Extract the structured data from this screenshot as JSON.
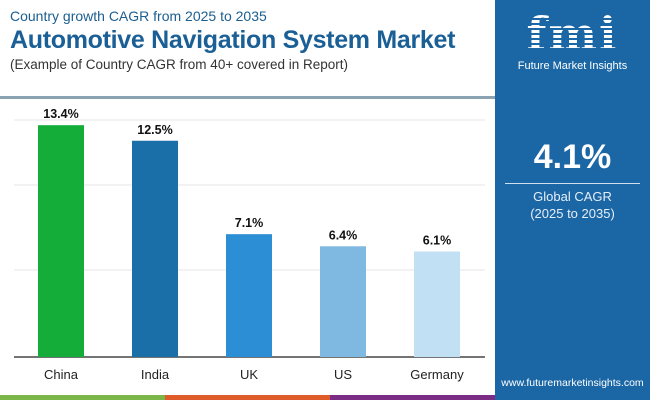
{
  "header": {
    "subtitle": "Country growth CAGR from 2025 to 2035",
    "title": "Automotive Navigation System Market",
    "note": "(Example of Country CAGR from 40+ covered in Report)"
  },
  "panel": {
    "logo_text": "fmi",
    "brand": "Future Market Insights",
    "cagr_value": "4.1%",
    "cagr_label": "Global CAGR",
    "cagr_period": "(2025 to 2035)",
    "website": "www.futuremarketinsights.com",
    "background": "#1b67a6"
  },
  "chart_data": {
    "type": "bar",
    "title": "",
    "xlabel": "",
    "ylabel": "",
    "categories": [
      "China",
      "India",
      "UK",
      "US",
      "Germany"
    ],
    "values": [
      13.4,
      12.5,
      7.1,
      6.4,
      6.1
    ],
    "labels": [
      "13.4%",
      "12.5%",
      "7.1%",
      "6.4%",
      "6.1%"
    ],
    "colors": [
      "#14ad3a",
      "#1b6fa8",
      "#2c8fd5",
      "#7fb9e2",
      "#c2e0f3"
    ],
    "ylim": [
      0,
      14
    ],
    "grid": true,
    "legend": "none"
  },
  "footer_colors": [
    "#7ab648",
    "#e05b2a",
    "#7b2d86"
  ]
}
